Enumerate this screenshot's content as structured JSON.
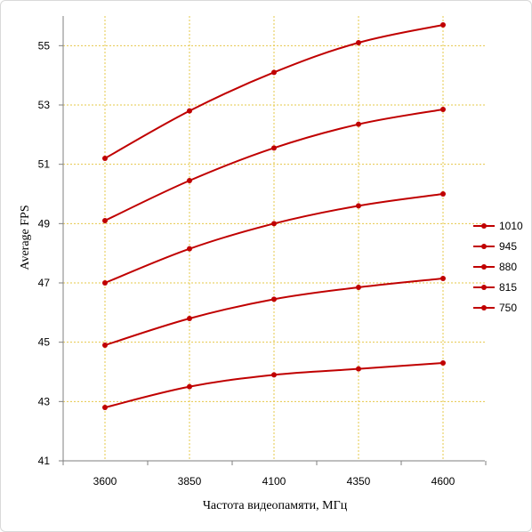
{
  "chart_data": {
    "type": "line",
    "title": "",
    "xlabel": "Частота видеопамяти, МГц",
    "ylabel": "Average FPS",
    "x": [
      "3600",
      "3850",
      "4100",
      "4350",
      "4600"
    ],
    "ylim": [
      41,
      56
    ],
    "yticks": [
      "41",
      "43",
      "45",
      "47",
      "49",
      "51",
      "53",
      "55"
    ],
    "grid": "horizontal and vertical, dotted gold",
    "legend_position": "right",
    "line_color": "#c00000",
    "grid_color": "#e6c84a",
    "series": [
      {
        "name": "1010",
        "values": [
          51.2,
          52.8,
          54.1,
          55.1,
          55.7
        ]
      },
      {
        "name": "945",
        "values": [
          49.1,
          50.45,
          51.55,
          52.35,
          52.85
        ]
      },
      {
        "name": "880",
        "values": [
          47.0,
          48.15,
          49.0,
          49.6,
          50.0
        ]
      },
      {
        "name": "815",
        "values": [
          44.9,
          45.8,
          46.45,
          46.85,
          47.15
        ]
      },
      {
        "name": "750",
        "values": [
          42.8,
          43.5,
          43.9,
          44.1,
          44.3
        ]
      }
    ]
  }
}
